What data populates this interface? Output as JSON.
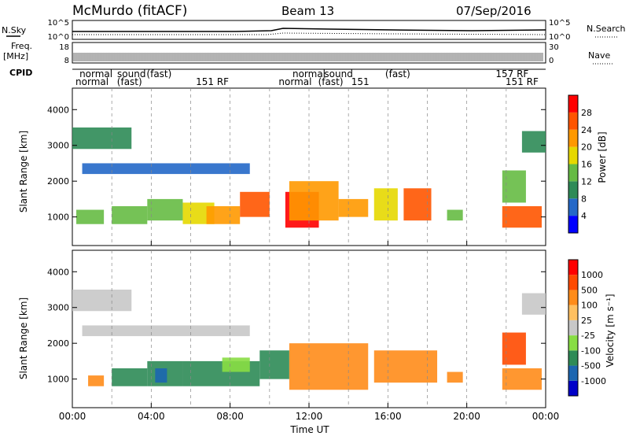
{
  "header": {
    "station": "McMurdo (fitACF)",
    "beam": "Beam 13",
    "date": "07/Sep/2016"
  },
  "strip": {
    "nsky_label": "N.Sky",
    "nsearch_label": "N.Search",
    "noise_ticks": [
      "10^5",
      "10^0"
    ],
    "freq_label": "Freq.",
    "freq_unit": "[MHz]",
    "freq_ticks": [
      "18",
      "8"
    ],
    "nave_label": "Nave",
    "nave_ticks": [
      "30",
      "0"
    ],
    "cpid_label": "CPID",
    "cpid_row1": [
      {
        "t": 1.2,
        "label": "normal"
      },
      {
        "t": 3.0,
        "label": "sound"
      },
      {
        "t": 4.4,
        "label": "(fast)"
      },
      {
        "t": 12.0,
        "label": "normal"
      },
      {
        "t": 13.5,
        "label": "sound"
      },
      {
        "t": 16.5,
        "label": "(fast)"
      },
      {
        "t": 22.3,
        "label": "157 RF"
      }
    ],
    "cpid_row2": [
      {
        "t": 1.0,
        "label": "normal"
      },
      {
        "t": 2.9,
        "label": "(fast)"
      },
      {
        "t": 7.1,
        "label": "151 RF"
      },
      {
        "t": 11.3,
        "label": "normal"
      },
      {
        "t": 13.1,
        "label": "(fast)"
      },
      {
        "t": 14.6,
        "label": "151"
      },
      {
        "t": 22.8,
        "label": "151 RF"
      }
    ]
  },
  "colorbars": {
    "power": {
      "title": "Power [dB]",
      "ticks": [
        "28",
        "24",
        "20",
        "16",
        "12",
        "8",
        "4"
      ]
    },
    "velocity": {
      "title": "Velocity [m s⁻¹]",
      "ticks": [
        "1000",
        "500",
        "100",
        "25",
        "-25",
        "-100",
        "-500",
        "-1000"
      ]
    }
  },
  "chart_data": [
    {
      "type": "heatmap",
      "name": "power",
      "ylabel": "Slant Range [km]",
      "xlabel": "Time UT",
      "xlim": [
        0,
        24
      ],
      "ylim": [
        200,
        4600
      ],
      "x_ticks": [
        "00:00",
        "04:00",
        "08:00",
        "12:00",
        "16:00",
        "20:00",
        "00:00"
      ],
      "y_ticks": [
        1000,
        2000,
        3000,
        4000
      ],
      "colorbar_ticks": [
        4,
        8,
        12,
        16,
        20,
        24,
        28
      ],
      "colors": [
        "#0000ff",
        "#2468c8",
        "#2e8b57",
        "#66bb44",
        "#e6d800",
        "#ff9900",
        "#ff5500",
        "#ff0000"
      ],
      "patches": [
        {
          "t0": 0.2,
          "t1": 1.6,
          "r0": 800,
          "r1": 1200,
          "level": 3
        },
        {
          "t0": 2.0,
          "t1": 3.8,
          "r0": 800,
          "r1": 1300,
          "level": 3
        },
        {
          "t0": 3.8,
          "t1": 5.6,
          "r0": 900,
          "r1": 1500,
          "level": 3
        },
        {
          "t0": 5.6,
          "t1": 7.2,
          "r0": 800,
          "r1": 1400,
          "level": 4
        },
        {
          "t0": 6.8,
          "t1": 8.5,
          "r0": 800,
          "r1": 1300,
          "level": 5
        },
        {
          "t0": 8.5,
          "t1": 10.0,
          "r0": 1000,
          "r1": 1700,
          "level": 6
        },
        {
          "t0": 10.8,
          "t1": 12.5,
          "r0": 700,
          "r1": 1700,
          "level": 7
        },
        {
          "t0": 11.0,
          "t1": 13.5,
          "r0": 900,
          "r1": 2000,
          "level": 5
        },
        {
          "t0": 13.5,
          "t1": 15.0,
          "r0": 1000,
          "r1": 1500,
          "level": 5
        },
        {
          "t0": 15.3,
          "t1": 16.5,
          "r0": 900,
          "r1": 1800,
          "level": 4
        },
        {
          "t0": 16.8,
          "t1": 18.2,
          "r0": 900,
          "r1": 1800,
          "level": 6
        },
        {
          "t0": 19.0,
          "t1": 19.8,
          "r0": 900,
          "r1": 1200,
          "level": 3
        },
        {
          "t0": 21.8,
          "t1": 23.8,
          "r0": 700,
          "r1": 1300,
          "level": 6
        },
        {
          "t0": 21.8,
          "t1": 23.0,
          "r0": 1400,
          "r1": 2300,
          "level": 3
        },
        {
          "t0": 0.5,
          "t1": 9.0,
          "r0": 2200,
          "r1": 2500,
          "level": 1
        },
        {
          "t0": 0.0,
          "t1": 3.0,
          "r0": 2900,
          "r1": 3500,
          "level": 2
        },
        {
          "t0": 22.8,
          "t1": 24.0,
          "r0": 2800,
          "r1": 3400,
          "level": 2
        }
      ]
    },
    {
      "type": "heatmap",
      "name": "velocity",
      "ylabel": "Slant Range [km]",
      "xlabel": "Time UT",
      "xlim": [
        0,
        24
      ],
      "ylim": [
        200,
        4600
      ],
      "x_ticks": [
        "00:00",
        "04:00",
        "08:00",
        "12:00",
        "16:00",
        "20:00",
        "00:00"
      ],
      "y_ticks": [
        1000,
        2000,
        3000,
        4000
      ],
      "colorbar_ticks": [
        -1000,
        -500,
        -100,
        -25,
        25,
        100,
        500,
        1000
      ],
      "colors": [
        "#ff0000",
        "#ff4a00",
        "#ff8c1a",
        "#ffc060",
        "#c8c8c8",
        "#88dd44",
        "#2e8b57",
        "#1c66b0",
        "#0000c8"
      ],
      "patches": [
        {
          "t0": 0.8,
          "t1": 1.6,
          "r0": 800,
          "r1": 1100,
          "level": 2
        },
        {
          "t0": 2.0,
          "t1": 3.8,
          "r0": 800,
          "r1": 1300,
          "level": 6
        },
        {
          "t0": 3.8,
          "t1": 5.6,
          "r0": 800,
          "r1": 1500,
          "level": 6
        },
        {
          "t0": 4.2,
          "t1": 4.8,
          "r0": 900,
          "r1": 1300,
          "level": 7
        },
        {
          "t0": 5.6,
          "t1": 9.5,
          "r0": 800,
          "r1": 1500,
          "level": 6
        },
        {
          "t0": 7.6,
          "t1": 9.0,
          "r0": 1200,
          "r1": 1600,
          "level": 5
        },
        {
          "t0": 9.5,
          "t1": 11.0,
          "r0": 1000,
          "r1": 1800,
          "level": 6
        },
        {
          "t0": 11.0,
          "t1": 15.0,
          "r0": 700,
          "r1": 2000,
          "level": 2
        },
        {
          "t0": 15.3,
          "t1": 18.5,
          "r0": 900,
          "r1": 1800,
          "level": 2
        },
        {
          "t0": 19.0,
          "t1": 19.8,
          "r0": 900,
          "r1": 1200,
          "level": 2
        },
        {
          "t0": 21.8,
          "t1": 23.8,
          "r0": 700,
          "r1": 1300,
          "level": 2
        },
        {
          "t0": 21.8,
          "t1": 23.0,
          "r0": 1400,
          "r1": 2300,
          "level": 1
        },
        {
          "t0": 0.5,
          "t1": 9.0,
          "r0": 2200,
          "r1": 2500,
          "level": 4
        },
        {
          "t0": 0.0,
          "t1": 3.0,
          "r0": 2900,
          "r1": 3500,
          "level": 4
        },
        {
          "t0": 22.8,
          "t1": 24.0,
          "r0": 2800,
          "r1": 3400,
          "level": 4
        }
      ]
    }
  ]
}
